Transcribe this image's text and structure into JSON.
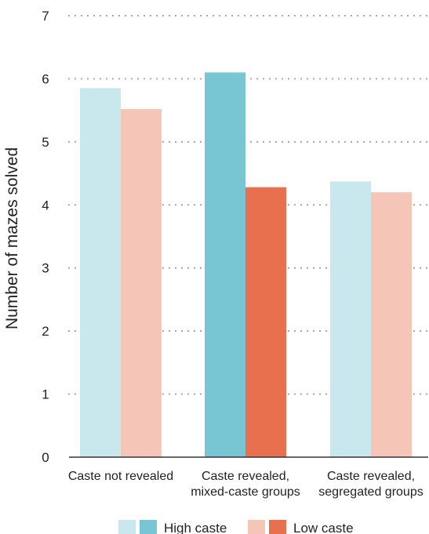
{
  "chart_data": {
    "type": "bar",
    "ylabel": "Number of mazes solved",
    "xlabel": "",
    "title": "",
    "ylim": [
      0,
      7
    ],
    "yticks": [
      0,
      1,
      2,
      3,
      4,
      5,
      6,
      7
    ],
    "grid": "horizontal-dotted",
    "categories": [
      [
        "Caste not revealed"
      ],
      [
        "Caste revealed,",
        "mixed-caste groups"
      ],
      [
        "Caste revealed,",
        "segregated groups"
      ]
    ],
    "series": [
      {
        "name": "High caste",
        "values": [
          5.85,
          6.1,
          4.37
        ],
        "colors": [
          "#c8e8ee",
          "#78c6d3",
          "#c8e8ee"
        ]
      },
      {
        "name": "Low caste",
        "values": [
          5.52,
          4.28,
          4.2
        ],
        "colors": [
          "#f5c6b8",
          "#e8704f",
          "#f5c6b8"
        ]
      }
    ],
    "legend": {
      "placement": "bottom",
      "entries": [
        {
          "label": "High caste",
          "swatches": [
            "#c8e8ee",
            "#78c6d3"
          ]
        },
        {
          "label": "Low caste",
          "swatches": [
            "#f5c6b8",
            "#e8704f"
          ]
        }
      ]
    },
    "colors": {
      "grid": "#a0a0a0",
      "axis": "#333333",
      "text": "#222222"
    }
  }
}
